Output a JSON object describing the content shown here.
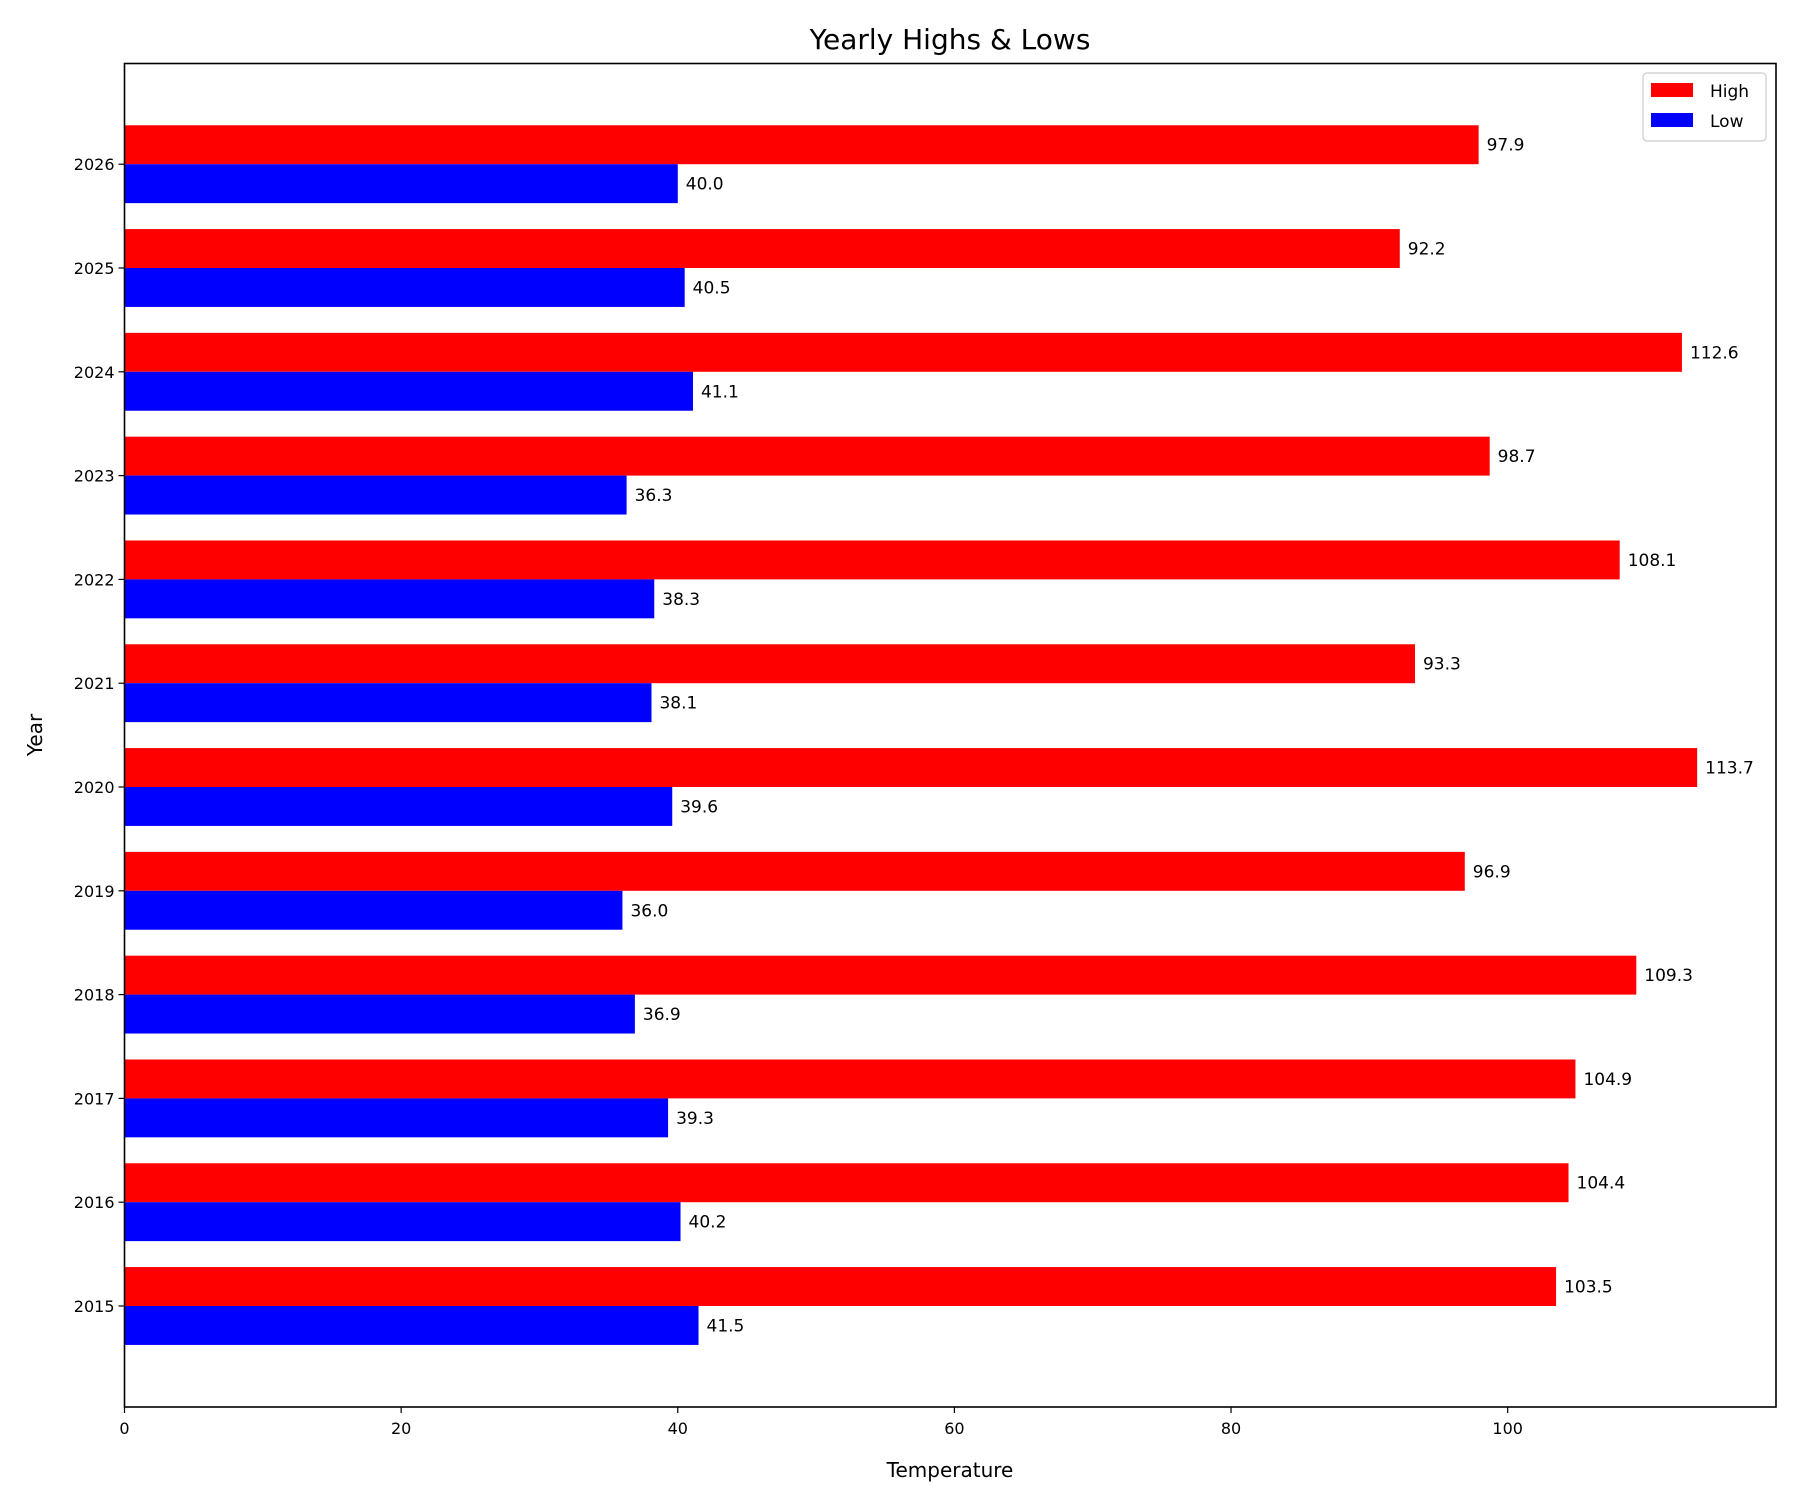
{
  "chart_data": {
    "type": "bar",
    "orientation": "horizontal",
    "title": "Yearly Highs & Lows",
    "xlabel": "Temperature",
    "ylabel": "Year",
    "categories": [
      "2015",
      "2016",
      "2017",
      "2018",
      "2019",
      "2020",
      "2021",
      "2022",
      "2023",
      "2024",
      "2025",
      "2026"
    ],
    "series": [
      {
        "name": "High",
        "color": "#ff0000",
        "values": [
          103.5,
          104.4,
          104.9,
          109.3,
          96.9,
          113.7,
          93.3,
          108.1,
          98.7,
          112.6,
          92.2,
          97.9
        ]
      },
      {
        "name": "Low",
        "color": "#0000ff",
        "values": [
          41.5,
          40.2,
          39.3,
          36.9,
          36.0,
          39.6,
          38.1,
          38.3,
          36.3,
          41.1,
          40.5,
          40.0
        ]
      }
    ],
    "xlim": [
      0,
      119.4
    ],
    "xticks": [
      "0",
      "20",
      "40",
      "60",
      "80",
      "100"
    ],
    "grid": false,
    "legend": "top-right",
    "data_labels": true
  }
}
